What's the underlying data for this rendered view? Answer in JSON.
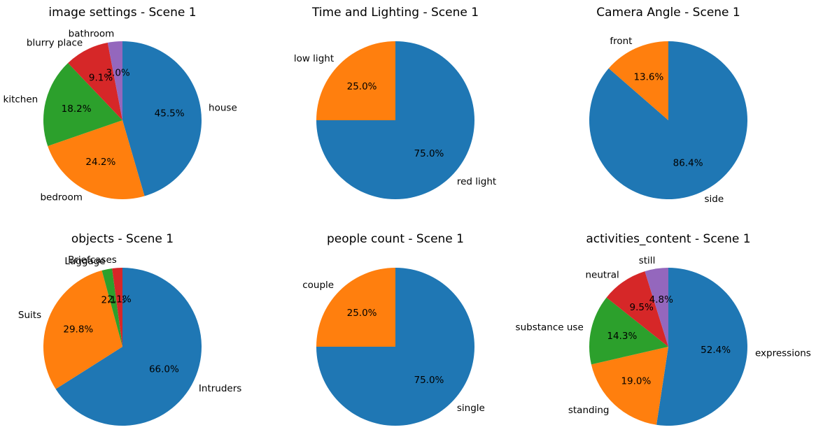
{
  "chart_data": [
    {
      "type": "pie",
      "title": "image settings - Scene 1",
      "labels": [
        "house",
        "bedroom",
        "kitchen",
        "blurry place",
        "bathroom"
      ],
      "values": [
        45.5,
        24.2,
        18.2,
        9.1,
        3.0
      ],
      "pct_labels": [
        "45.5%",
        "24.2%",
        "18.2%",
        "9.1%",
        "3.0%"
      ]
    },
    {
      "type": "pie",
      "title": "Time and Lighting - Scene 1",
      "labels": [
        "red light",
        "low light"
      ],
      "values": [
        75.0,
        25.0
      ],
      "pct_labels": [
        "75.0%",
        "25.0%"
      ]
    },
    {
      "type": "pie",
      "title": "Camera Angle - Scene 1",
      "labels": [
        "side",
        "front"
      ],
      "values": [
        86.4,
        13.6
      ],
      "pct_labels": [
        "86.4%",
        "13.6%"
      ]
    },
    {
      "type": "pie",
      "title": "objects - Scene 1",
      "labels": [
        "Intruders",
        "Suits",
        "Luggage",
        "Briefcases"
      ],
      "values": [
        66.0,
        29.8,
        2.1,
        2.1
      ],
      "pct_labels": [
        "66.0%",
        "29.8%",
        "2.1%",
        "2.1%"
      ]
    },
    {
      "type": "pie",
      "title": "people count - Scene 1",
      "labels": [
        "single",
        "couple"
      ],
      "values": [
        75.0,
        25.0
      ],
      "pct_labels": [
        "75.0%",
        "25.0%"
      ]
    },
    {
      "type": "pie",
      "title": "activities_content - Scene 1",
      "labels": [
        "expressions",
        "standing",
        "substance use",
        "neutral",
        "still"
      ],
      "values": [
        52.4,
        19.0,
        14.3,
        9.5,
        4.8
      ],
      "pct_labels": [
        "52.4%",
        "19.0%",
        "14.3%",
        "9.5%",
        "4.8%"
      ]
    }
  ],
  "colors": [
    "#1f77b4",
    "#ff7f0e",
    "#2ca02c",
    "#d62728",
    "#9467bd"
  ],
  "start_angle": "90 degrees, clockwise"
}
